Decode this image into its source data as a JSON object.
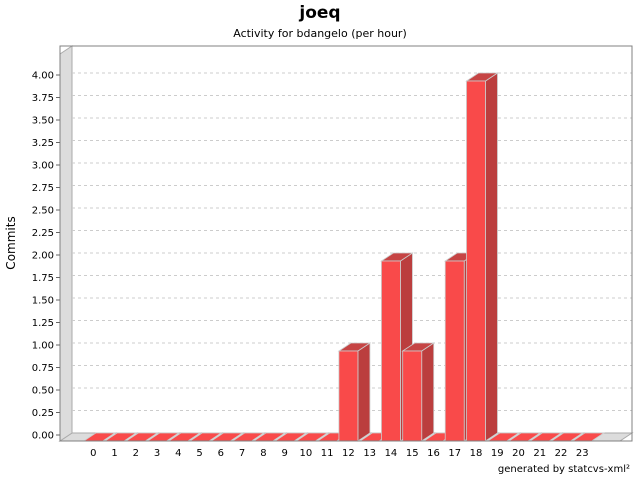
{
  "header": {
    "title": "joeq",
    "subtitle": "Activity for bdangelo (per hour)"
  },
  "footer": {
    "credit": "generated by statcvs-xml²"
  },
  "chart_data": {
    "type": "bar",
    "style": "3d-vertical-bars",
    "title": "joeq",
    "subtitle": "Activity for bdangelo (per hour)",
    "xlabel": "",
    "ylabel": "Commits",
    "categories": [
      "0",
      "1",
      "2",
      "3",
      "4",
      "5",
      "6",
      "7",
      "8",
      "9",
      "10",
      "11",
      "12",
      "13",
      "14",
      "15",
      "16",
      "17",
      "18",
      "19",
      "20",
      "21",
      "22",
      "23"
    ],
    "values": [
      0,
      0,
      0,
      0,
      0,
      0,
      0,
      0,
      0,
      0,
      0,
      0,
      1,
      0,
      2,
      1,
      0,
      2,
      4,
      0,
      0,
      0,
      0,
      0
    ],
    "ylim": [
      0.0,
      4.0
    ],
    "ytick_step": 0.25,
    "ytick_format_decimals": 2,
    "grid": "horizontal-dashed",
    "legend": "none",
    "colors": {
      "bar_front": "#f94a4a",
      "bar_side": "#bb3e3e",
      "bar_top": "#c64444",
      "bar_outline": "#cccccc",
      "wall": "#dcdcdc",
      "wall_edge": "#aaaaaa",
      "gridline": "#cccccc",
      "plot_border": "#808080",
      "background": "#ffffff",
      "text": "#000000",
      "tick": "#666666"
    }
  }
}
